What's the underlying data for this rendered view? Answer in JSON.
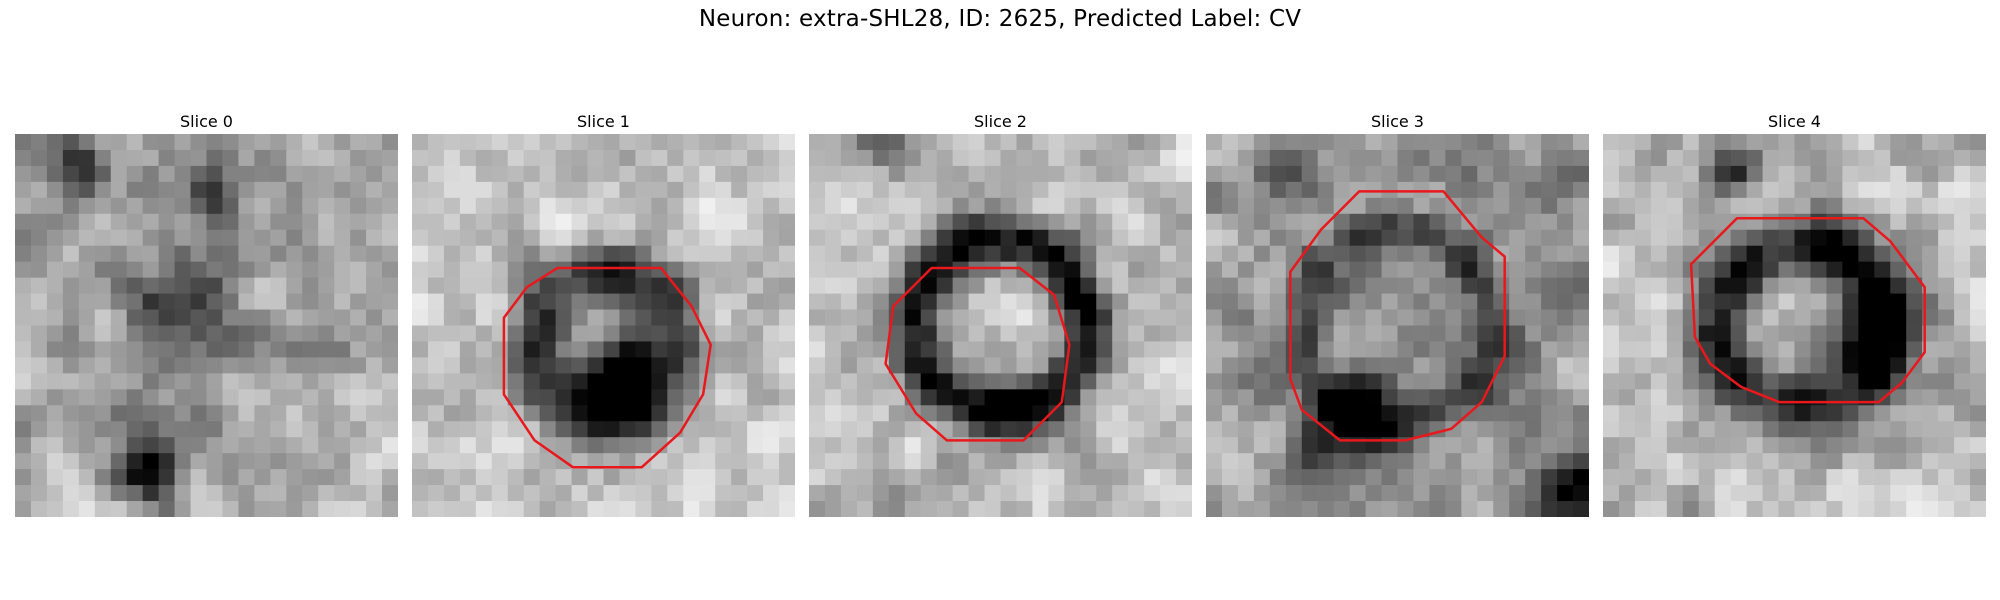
{
  "figure": {
    "title": "Neuron: extra-SHL28, ID: 2625, Predicted Label: CV",
    "outline_color": "#e8181c"
  },
  "panels": [
    {
      "title": "Slice 0"
    },
    {
      "title": "Slice 1"
    },
    {
      "title": "Slice 2"
    },
    {
      "title": "Slice 3"
    },
    {
      "title": "Slice 4"
    }
  ]
}
